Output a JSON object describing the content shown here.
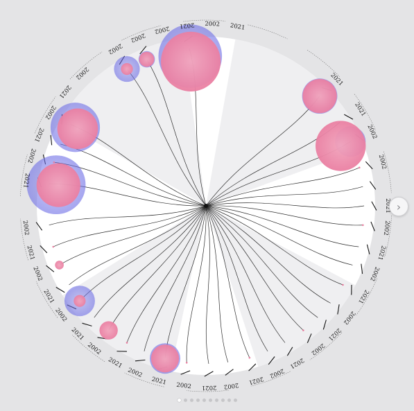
{
  "colors": {
    "background": "#e4e4e6",
    "disk": "#ffffff",
    "wedge": "#efeff1",
    "year_2002_bubble": "#6f6fe6",
    "year_2021_bubble": "#f2a4bc",
    "branch_line": "#2a2a2a"
  },
  "nav": {
    "next_icon": "chevron-right-icon",
    "next_glyph": "›",
    "page_count": 10,
    "active_page": 1
  },
  "chart_data": {
    "type": "radial-dendrogram-bubble",
    "series": [
      {
        "name": "2002",
        "color": "#6f6fe6"
      },
      {
        "name": "2021",
        "color": "#f2a4bc"
      }
    ],
    "categories": [
      "c01",
      "c02",
      "c03",
      "c04",
      "c05",
      "c06",
      "c07",
      "c08",
      "c09",
      "c10",
      "c11",
      "c12",
      "c13",
      "c14",
      "c15",
      "c16",
      "c17",
      "c18",
      "c19",
      "c20",
      "c21",
      "c22",
      "c23",
      "c24",
      "c25",
      "c26",
      "c27",
      "c28",
      "c29",
      "c30",
      "c31",
      "c32",
      "c33",
      "c34",
      "c35",
      "c36"
    ],
    "angles_deg": [
      -44,
      -32,
      -24,
      -14,
      -7,
      0,
      7,
      15,
      22,
      30,
      38,
      45,
      52,
      60,
      67,
      74,
      82,
      89,
      97,
      105,
      113,
      120,
      128,
      135,
      143,
      150,
      158,
      165,
      173,
      -172,
      -164,
      -157,
      -149,
      -120,
      -112,
      -96
    ],
    "values_2002": [
      6,
      0,
      5,
      0,
      0,
      0,
      0,
      0,
      0,
      0,
      0,
      0,
      0,
      0,
      0,
      0,
      0,
      0,
      0,
      5,
      0,
      0,
      0,
      0,
      5,
      0,
      0,
      0,
      0,
      11,
      0,
      0,
      9,
      4,
      2,
      12
    ],
    "values_2021": [
      9,
      0,
      14,
      0,
      0,
      0,
      0,
      0,
      0,
      0,
      0,
      0,
      0,
      0,
      0,
      0,
      0,
      0,
      0,
      7,
      0,
      0,
      4,
      0,
      2,
      0,
      1,
      0,
      0,
      12,
      0,
      0,
      11,
      2,
      3,
      17
    ],
    "labels": [
      {
        "text": "2021",
        "angle": -44
      },
      {
        "text": "2002",
        "angle": -24
      },
      {
        "text": "2021",
        "angle": -32
      },
      {
        "text": "2002",
        "angle": -14
      },
      {
        "text": "2021",
        "angle": 0
      },
      {
        "text": "2002",
        "angle": 7
      },
      {
        "text": "2021",
        "angle": 15
      },
      {
        "text": "2002",
        "angle": 22
      },
      {
        "text": "2021",
        "angle": 30
      },
      {
        "text": "2002",
        "angle": 38
      },
      {
        "text": "2021",
        "angle": 45
      },
      {
        "text": "2002",
        "angle": 52
      },
      {
        "text": "2021",
        "angle": 60
      },
      {
        "text": "2002",
        "angle": 67
      },
      {
        "text": "2021",
        "angle": 74
      },
      {
        "text": "2002",
        "angle": 82
      },
      {
        "text": "2021",
        "angle": 89
      },
      {
        "text": "2002",
        "angle": 97
      },
      {
        "text": "2021",
        "angle": 105
      },
      {
        "text": "2002",
        "angle": 113
      },
      {
        "text": "2021",
        "angle": 120
      },
      {
        "text": "2002",
        "angle": 128
      },
      {
        "text": "2021",
        "angle": 135
      },
      {
        "text": "2002",
        "angle": 143
      },
      {
        "text": "2021",
        "angle": 150
      },
      {
        "text": "2002",
        "angle": 158
      },
      {
        "text": "2021",
        "angle": 165
      },
      {
        "text": "2002",
        "angle": 173
      },
      {
        "text": "2021",
        "angle": -172
      },
      {
        "text": "2002",
        "angle": -164
      },
      {
        "text": "2021",
        "angle": -157
      },
      {
        "text": "2002",
        "angle": -149
      },
      {
        "text": "2021",
        "angle": -141
      },
      {
        "text": "2002",
        "angle": -133
      },
      {
        "text": "2002",
        "angle": -120
      },
      {
        "text": "2002",
        "angle": -112
      },
      {
        "text": "2002",
        "angle": -104
      },
      {
        "text": "2021",
        "angle": -96
      },
      {
        "text": "2002",
        "angle": -88
      },
      {
        "text": "2021",
        "angle": -80
      }
    ]
  }
}
